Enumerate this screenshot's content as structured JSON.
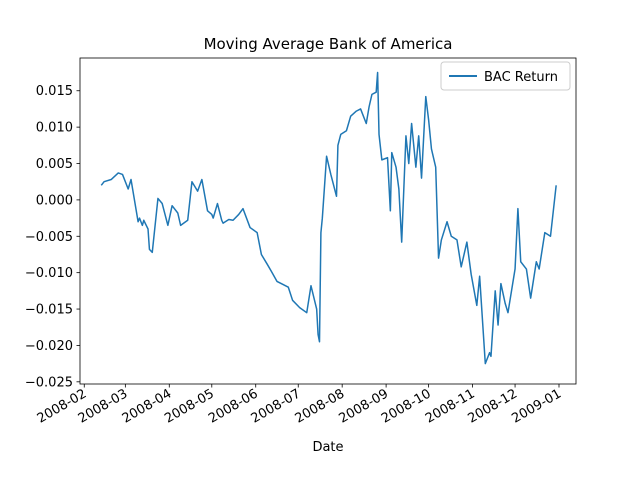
{
  "chart_data": {
    "type": "line",
    "title": "Moving Average Bank of America",
    "xlabel": "Date",
    "ylabel": "",
    "xlim": [
      "2008-01-29",
      "2009-01-13"
    ],
    "ylim": [
      -0.0253,
      0.0195
    ],
    "grid": false,
    "legend_position": "upper right",
    "x_tick_labels": [
      "2008-02",
      "2008-03",
      "2008-04",
      "2008-05",
      "2008-06",
      "2008-07",
      "2008-08",
      "2008-09",
      "2008-10",
      "2008-11",
      "2008-12",
      "2009-01"
    ],
    "y_ticks": [
      -0.025,
      -0.02,
      -0.015,
      -0.01,
      -0.005,
      0.0,
      0.005,
      0.01,
      0.015
    ],
    "y_tick_labels": [
      "−0.025",
      "−0.020",
      "−0.015",
      "−0.010",
      "−0.005",
      "0.000",
      "0.005",
      "0.010",
      "0.015"
    ],
    "series": [
      {
        "name": "BAC Return",
        "color": "#1f77b4",
        "x": [
          "2008-02-13",
          "2008-02-15",
          "2008-02-20",
          "2008-02-25",
          "2008-02-28",
          "2008-03-03",
          "2008-03-05",
          "2008-03-10",
          "2008-03-11",
          "2008-03-13",
          "2008-03-14",
          "2008-03-17",
          "2008-03-18",
          "2008-03-20",
          "2008-03-24",
          "2008-03-27",
          "2008-03-31",
          "2008-04-03",
          "2008-04-07",
          "2008-04-09",
          "2008-04-14",
          "2008-04-17",
          "2008-04-21",
          "2008-04-24",
          "2008-04-28",
          "2008-05-01",
          "2008-05-02",
          "2008-05-05",
          "2008-05-08",
          "2008-05-09",
          "2008-05-13",
          "2008-05-16",
          "2008-05-20",
          "2008-05-23",
          "2008-05-28",
          "2008-06-02",
          "2008-06-05",
          "2008-06-09",
          "2008-06-12",
          "2008-06-16",
          "2008-06-19",
          "2008-06-24",
          "2008-06-27",
          "2008-07-02",
          "2008-07-07",
          "2008-07-10",
          "2008-07-14",
          "2008-07-15",
          "2008-07-16",
          "2008-07-17",
          "2008-07-18",
          "2008-07-21",
          "2008-07-24",
          "2008-07-28",
          "2008-07-29",
          "2008-07-31",
          "2008-08-04",
          "2008-08-07",
          "2008-08-11",
          "2008-08-14",
          "2008-08-18",
          "2008-08-20",
          "2008-08-22",
          "2008-08-25",
          "2008-08-26",
          "2008-08-27",
          "2008-08-29",
          "2008-09-02",
          "2008-09-04",
          "2008-09-05",
          "2008-09-08",
          "2008-09-10",
          "2008-09-12",
          "2008-09-15",
          "2008-09-17",
          "2008-09-19",
          "2008-09-22",
          "2008-09-24",
          "2008-09-26",
          "2008-09-29",
          "2008-10-01",
          "2008-10-03",
          "2008-10-06",
          "2008-10-08",
          "2008-10-10",
          "2008-10-14",
          "2008-10-17",
          "2008-10-21",
          "2008-10-24",
          "2008-10-28",
          "2008-10-31",
          "2008-11-04",
          "2008-11-06",
          "2008-11-10",
          "2008-11-13",
          "2008-11-14",
          "2008-11-17",
          "2008-11-19",
          "2008-11-21",
          "2008-11-24",
          "2008-11-26",
          "2008-12-01",
          "2008-12-03",
          "2008-12-05",
          "2008-12-09",
          "2008-12-12",
          "2008-12-16",
          "2008-12-18",
          "2008-12-22",
          "2008-12-26",
          "2008-12-30"
        ],
        "values": [
          0.002,
          0.0025,
          0.0028,
          0.0037,
          0.0035,
          0.0015,
          0.0028,
          -0.003,
          -0.0025,
          -0.0035,
          -0.0028,
          -0.004,
          -0.0068,
          -0.0072,
          0.0002,
          -0.0005,
          -0.0035,
          -0.0008,
          -0.0018,
          -0.0035,
          -0.0028,
          0.0025,
          0.0012,
          0.0028,
          -0.0015,
          -0.002,
          -0.0025,
          -0.0005,
          -0.0028,
          -0.0032,
          -0.0027,
          -0.0028,
          -0.002,
          -0.0012,
          -0.0038,
          -0.0045,
          -0.0075,
          -0.0088,
          -0.0098,
          -0.0112,
          -0.0115,
          -0.012,
          -0.0138,
          -0.0148,
          -0.0155,
          -0.0118,
          -0.015,
          -0.0185,
          -0.0195,
          -0.0045,
          -0.0025,
          0.006,
          0.0035,
          0.0005,
          0.0075,
          0.009,
          0.0095,
          0.0115,
          0.0122,
          0.0125,
          0.0105,
          0.0128,
          0.0145,
          0.0148,
          0.0175,
          0.009,
          0.0055,
          0.0058,
          -0.0015,
          0.0065,
          0.0045,
          0.0015,
          -0.0058,
          0.0088,
          0.005,
          0.0105,
          0.0045,
          0.0088,
          0.003,
          0.0142,
          0.011,
          0.007,
          0.0045,
          -0.008,
          -0.0055,
          -0.003,
          -0.005,
          -0.0055,
          -0.0092,
          -0.0058,
          -0.0102,
          -0.0145,
          -0.0105,
          -0.0225,
          -0.021,
          -0.0215,
          -0.0125,
          -0.0172,
          -0.0115,
          -0.0142,
          -0.0155,
          -0.0095,
          -0.0012,
          -0.0085,
          -0.0095,
          -0.0135,
          -0.0085,
          -0.0095,
          -0.0045,
          -0.005,
          0.002
        ]
      }
    ]
  }
}
